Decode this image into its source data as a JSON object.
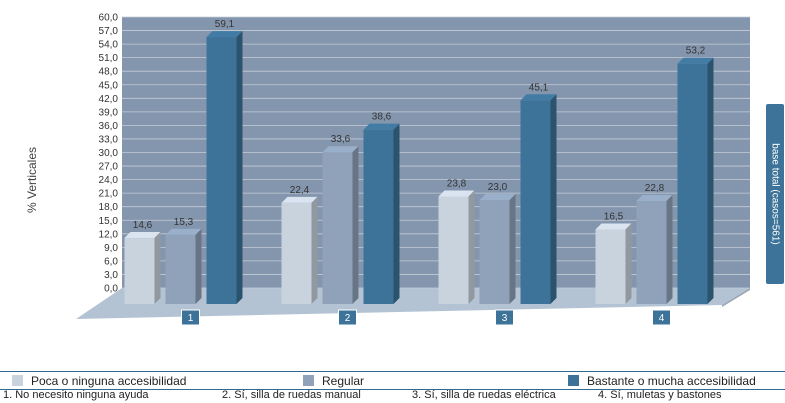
{
  "chart_data": {
    "type": "bar",
    "categories": [
      "1",
      "2",
      "3",
      "4"
    ],
    "series": [
      {
        "name": "Poca o ninguna accesibilidad",
        "values": [
          14.6,
          22.4,
          23.8,
          16.5
        ],
        "color": "#c9d3de"
      },
      {
        "name": "Regular",
        "values": [
          15.3,
          33.6,
          23.0,
          22.8
        ],
        "color": "#8fa2ba"
      },
      {
        "name": "Bastante o mucha accesibilidad",
        "values": [
          59.1,
          38.6,
          45.1,
          53.2
        ],
        "color": "#3d7398"
      }
    ],
    "value_labels": [
      [
        "14,6",
        "22,4",
        "23,8",
        "16,5"
      ],
      [
        "15,3",
        "33,6",
        "23,0",
        "22,8"
      ],
      [
        "59,1",
        "38,6",
        "45,1",
        "53,2"
      ]
    ],
    "ylabel": "% Verticales",
    "ylim": [
      0,
      60
    ],
    "yticks": [
      "0,0",
      "3,0",
      "6,0",
      "9,0",
      "12,0",
      "15,0",
      "18,0",
      "21,0",
      "24,0",
      "27,0",
      "30,0",
      "33,0",
      "36,0",
      "39,0",
      "42,0",
      "45,0",
      "48,0",
      "51,0",
      "54,0",
      "57,0",
      "60,0"
    ],
    "grid": true,
    "legend_position": "bottom",
    "side_note": "base total (casos=561)",
    "category_notes": [
      "1.   No necesito ninguna ayuda",
      "2.  Sí, silla de ruedas manual",
      "3. Sí, silla de ruedas eléctrica",
      "4.  Sí, muletas y bastones"
    ]
  },
  "colors": {
    "wall": "#8496ae",
    "floor": "#b4c3d3",
    "category_box": "#3d7398",
    "grid": "#c4ccd6"
  }
}
